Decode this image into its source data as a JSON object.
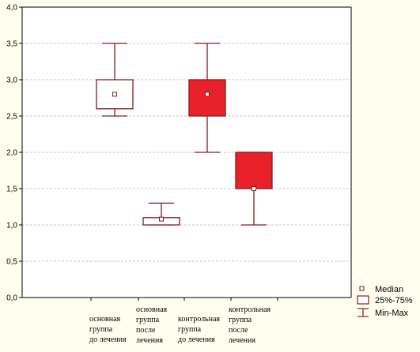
{
  "chart_data": {
    "type": "boxplot",
    "ylim": [
      0,
      4
    ],
    "yticks": [
      "0,0",
      "0,5",
      "1,0",
      "1,5",
      "2,0",
      "2,5",
      "3,0",
      "3,5",
      "4,0"
    ],
    "grid": true,
    "legend_position": "bottom-right",
    "legend": {
      "median": "Median",
      "box": "25%-75%",
      "whisker": "Min-Max"
    },
    "colors": {
      "line": "#8b1a1a",
      "fill": "#e8202a",
      "background": "#fffff0",
      "grid": "#c8c8c8"
    },
    "groups": [
      {
        "label_lines": [
          "основная",
          "группа",
          "до лечения"
        ],
        "min": 2.5,
        "q1": 2.6,
        "median": 2.8,
        "q3": 3.0,
        "max": 3.5,
        "filled": false
      },
      {
        "label_lines": [
          "основная",
          "группа",
          "после",
          "лечения"
        ],
        "min": 1.0,
        "q1": 1.0,
        "median": 1.08,
        "q3": 1.1,
        "max": 1.3,
        "filled": false
      },
      {
        "label_lines": [
          "контрольная",
          "группа",
          "до лечения"
        ],
        "min": 2.0,
        "q1": 2.5,
        "median": 2.8,
        "q3": 3.0,
        "max": 3.5,
        "filled": true
      },
      {
        "label_lines": [
          "контрольная",
          "группа",
          "после",
          "лечения"
        ],
        "min": 1.0,
        "q1": 1.5,
        "median": 1.5,
        "q3": 2.0,
        "max": 2.0,
        "filled": true
      }
    ]
  }
}
